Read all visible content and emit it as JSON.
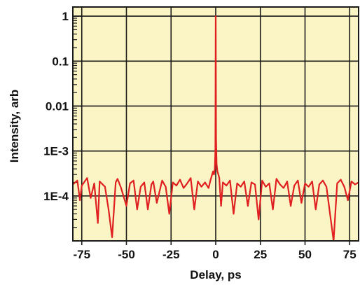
{
  "chart_data": {
    "type": "line",
    "title": "",
    "xlabel": "Delay, ps",
    "ylabel": "Intensity, arb",
    "xlim": [
      -80,
      80
    ],
    "ylim": [
      1e-05,
      1.6
    ],
    "yscale": "log",
    "grid": true,
    "x_ticks": [
      {
        "value": -75,
        "label": "-75"
      },
      {
        "value": -50,
        "label": "-50"
      },
      {
        "value": -25,
        "label": "-25"
      },
      {
        "value": 0,
        "label": "0"
      },
      {
        "value": 25,
        "label": "25"
      },
      {
        "value": 50,
        "label": "50"
      },
      {
        "value": 75,
        "label": "75"
      }
    ],
    "y_ticks": [
      {
        "value": 1,
        "label": "1"
      },
      {
        "value": 0.1,
        "label": "0.1"
      },
      {
        "value": 0.01,
        "label": "0.01"
      },
      {
        "value": 0.001,
        "label": "1E-3"
      },
      {
        "value": 0.0001,
        "label": "1E-4"
      }
    ],
    "colors": {
      "plot_background": "#fbf4c4",
      "series": "#e02020",
      "grid": "#1a1a1a"
    },
    "series": [
      {
        "x": [
          -80,
          -77.5,
          -76,
          -75,
          -72,
          -70,
          -68,
          -66,
          -65,
          -62,
          -60,
          -58,
          -56,
          -55,
          -53,
          -50,
          -48,
          -46,
          -44,
          -42,
          -40,
          -38,
          -36,
          -35,
          -33,
          -30,
          -28,
          -26,
          -24,
          -22,
          -20,
          -18,
          -16,
          -14,
          -12,
          -10,
          -8,
          -6,
          -4,
          -3,
          -2,
          -1.5,
          -1,
          -0.5,
          -0.2,
          0,
          0.2,
          0.5,
          1,
          1.5,
          2,
          3,
          4,
          6,
          8,
          10,
          12,
          14,
          16,
          18,
          20,
          22,
          24,
          26,
          28,
          30,
          32,
          34,
          36,
          38,
          40,
          42,
          44,
          46,
          48,
          50,
          52,
          54,
          56,
          58,
          60,
          62,
          64,
          66,
          68,
          70,
          72,
          74,
          76,
          78,
          80
        ],
        "y": [
          0.00018,
          0.00022,
          8e-05,
          0.00017,
          0.00025,
          9e-05,
          0.00019,
          2.5e-05,
          0.00021,
          0.00016,
          5e-05,
          1.2e-05,
          0.0002,
          0.00024,
          0.00015,
          6e-05,
          0.00019,
          0.00022,
          5e-05,
          0.00016,
          0.0002,
          5e-05,
          0.00018,
          0.00021,
          7e-05,
          0.00022,
          0.00016,
          4e-05,
          0.0002,
          0.00017,
          0.00023,
          0.00015,
          0.00019,
          0.00025,
          5e-05,
          0.00021,
          0.00016,
          0.0002,
          0.00015,
          0.00022,
          0.0003,
          0.00035,
          0.0003,
          0.0004,
          0.001,
          1.0,
          0.002,
          0.0005,
          0.00035,
          0.0003,
          0.00025,
          6e-05,
          0.0002,
          0.00017,
          0.00022,
          4e-05,
          0.00019,
          0.00016,
          0.00021,
          6e-05,
          0.0002,
          0.00018,
          3e-05,
          0.00022,
          0.00016,
          0.00019,
          5e-05,
          0.00024,
          0.00018,
          0.00015,
          0.00021,
          6e-05,
          0.00017,
          0.00022,
          7e-05,
          0.00019,
          0.00016,
          0.00021,
          5e-05,
          0.00018,
          0.00022,
          0.00016,
          4e-05,
          1e-05,
          0.00019,
          0.00023,
          0.00016,
          8e-05,
          0.00021,
          0.00018,
          0.0002
        ]
      }
    ]
  }
}
